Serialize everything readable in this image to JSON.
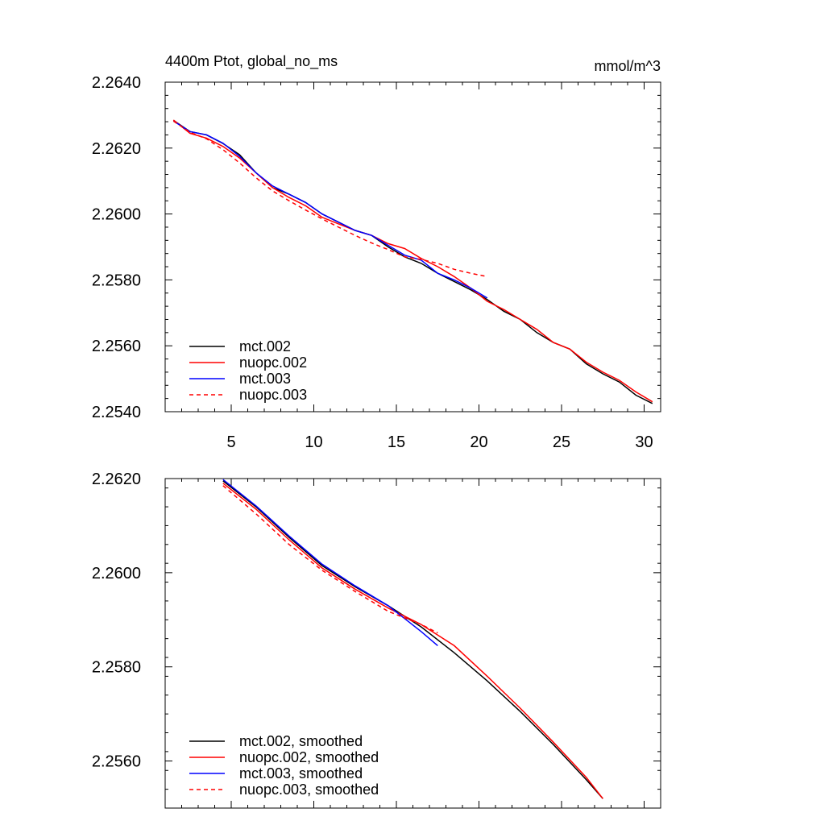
{
  "chart_data": [
    {
      "type": "line",
      "title": "4400m Ptot, global_no_ms",
      "units": "mmol/m^3",
      "xlabel": "",
      "ylabel": "",
      "xlim": [
        1,
        31
      ],
      "ylim": [
        2.254,
        2.264
      ],
      "x_ticks": [
        5,
        10,
        15,
        20,
        25,
        30
      ],
      "x_tick_labels": [
        "5",
        "10",
        "15",
        "20",
        "25",
        "30"
      ],
      "y_ticks": [
        2.254,
        2.256,
        2.258,
        2.26,
        2.262,
        2.264
      ],
      "y_tick_labels": [
        "2.2540",
        "2.2560",
        "2.2580",
        "2.2600",
        "2.2620",
        "2.2640"
      ],
      "grid": false,
      "legend_position": "bottom-left",
      "series": [
        {
          "name": "mct.002",
          "color": "#000000",
          "dash": "solid",
          "x": [
            1.5,
            2.5,
            3.5,
            4.5,
            5.5,
            6.5,
            7.5,
            8.5,
            9.5,
            10.5,
            11.5,
            12.5,
            13.5,
            14.5,
            15.5,
            16.5,
            17.5,
            18.5,
            19.5,
            20.5,
            21.5,
            22.5,
            23.5,
            24.5,
            25.5,
            26.5,
            27.5,
            28.5,
            29.5,
            30.5
          ],
          "values": [
            2.26284,
            2.2625,
            2.2624,
            2.26214,
            2.2618,
            2.26125,
            2.2608,
            2.2606,
            2.26035,
            2.26,
            2.25975,
            2.2595,
            2.25935,
            2.259,
            2.2587,
            2.2585,
            2.2582,
            2.25795,
            2.2577,
            2.2574,
            2.25705,
            2.2568,
            2.2564,
            2.2561,
            2.2559,
            2.25545,
            2.25515,
            2.2549,
            2.2545,
            2.25425
          ]
        },
        {
          "name": "nuopc.002",
          "color": "#ff0000",
          "dash": "solid",
          "x": [
            1.5,
            2.5,
            3.5,
            4.5,
            5.5,
            6.5,
            7.5,
            8.5,
            9.5,
            10.5,
            11.5,
            12.5,
            13.5,
            14.5,
            15.5,
            16.5,
            17.5,
            18.5,
            19.5,
            20.5,
            21.5,
            22.5,
            23.5,
            24.5,
            25.5,
            26.5,
            27.5,
            28.5,
            29.5,
            30.5
          ],
          "values": [
            2.26285,
            2.26245,
            2.2623,
            2.26205,
            2.2617,
            2.26125,
            2.2608,
            2.2605,
            2.26025,
            2.2599,
            2.2597,
            2.2595,
            2.25935,
            2.2591,
            2.25895,
            2.25865,
            2.2584,
            2.2581,
            2.25775,
            2.25735,
            2.2571,
            2.2568,
            2.2565,
            2.2561,
            2.2559,
            2.2555,
            2.2552,
            2.25495,
            2.2546,
            2.2543
          ]
        },
        {
          "name": "mct.003",
          "color": "#0000ff",
          "dash": "solid",
          "x": [
            1.5,
            2.5,
            3.5,
            4.5,
            5.5,
            6.5,
            7.5,
            8.5,
            9.5,
            10.5,
            11.5,
            12.5,
            13.5,
            14.5,
            15.5,
            16.5,
            17.5,
            18.5,
            19.5,
            20.5
          ],
          "values": [
            2.26282,
            2.2625,
            2.2624,
            2.26215,
            2.26175,
            2.26125,
            2.26085,
            2.2606,
            2.26035,
            2.26,
            2.25975,
            2.2595,
            2.25935,
            2.25905,
            2.25875,
            2.2586,
            2.2582,
            2.258,
            2.25775,
            2.25745
          ]
        },
        {
          "name": "nuopc.003",
          "color": "#ff0000",
          "dash": "dashed",
          "x": [
            1.5,
            2.5,
            3.5,
            4.5,
            5.5,
            6.5,
            7.5,
            8.5,
            9.5,
            10.5,
            11.5,
            12.5,
            13.5,
            14.5,
            15.5,
            16.5,
            17.5,
            18.5,
            19.5,
            20.5
          ],
          "values": [
            2.26282,
            2.26248,
            2.26228,
            2.26195,
            2.26155,
            2.2611,
            2.2607,
            2.2604,
            2.26012,
            2.25985,
            2.2596,
            2.25935,
            2.25912,
            2.25892,
            2.2587,
            2.25862,
            2.2585,
            2.25832,
            2.2582,
            2.2581
          ]
        }
      ]
    },
    {
      "type": "line",
      "title": "",
      "xlabel": "",
      "ylabel": "",
      "xlim": [
        1,
        31
      ],
      "ylim": [
        2.255,
        2.262
      ],
      "x_ticks": [
        5,
        10,
        15,
        20,
        25,
        30
      ],
      "y_ticks": [
        2.256,
        2.258,
        2.26,
        2.262
      ],
      "y_tick_labels": [
        "2.2560",
        "2.2580",
        "2.2600",
        "2.2620"
      ],
      "grid": false,
      "legend_position": "bottom-left",
      "series": [
        {
          "name": "mct.002, smoothed",
          "color": "#000000",
          "dash": "solid",
          "x": [
            4.5,
            6.5,
            8.5,
            10.5,
            12.5,
            14.5,
            16.5,
            18.5,
            20.5,
            22.5,
            24.5,
            26.5,
            27.5
          ],
          "values": [
            2.26195,
            2.2614,
            2.26075,
            2.26015,
            2.2597,
            2.2593,
            2.25885,
            2.2583,
            2.2577,
            2.25705,
            2.25635,
            2.2556,
            2.2552
          ]
        },
        {
          "name": "nuopc.002, smoothed",
          "color": "#ff0000",
          "dash": "solid",
          "x": [
            4.5,
            6.5,
            8.5,
            10.5,
            12.5,
            14.5,
            16.5,
            18.5,
            20.5,
            22.5,
            24.5,
            26.5,
            27.5
          ],
          "values": [
            2.2619,
            2.26135,
            2.2607,
            2.2601,
            2.25965,
            2.25925,
            2.2589,
            2.25845,
            2.2578,
            2.25712,
            2.2564,
            2.25565,
            2.2552
          ]
        },
        {
          "name": "mct.003, smoothed",
          "color": "#0000ff",
          "dash": "solid",
          "x": [
            4.5,
            6.5,
            8.5,
            10.5,
            12.5,
            14.5,
            16.5,
            17.5
          ],
          "values": [
            2.26198,
            2.26142,
            2.26078,
            2.26018,
            2.25972,
            2.2593,
            2.25875,
            2.25845
          ]
        },
        {
          "name": "nuopc.003, smoothed",
          "color": "#ff0000",
          "dash": "dashed",
          "x": [
            4.5,
            6.5,
            8.5,
            10.5,
            12.5,
            14.5,
            16.5,
            17.5
          ],
          "values": [
            2.26185,
            2.26125,
            2.2606,
            2.26005,
            2.2596,
            2.25918,
            2.2589,
            2.25872
          ]
        }
      ]
    }
  ]
}
